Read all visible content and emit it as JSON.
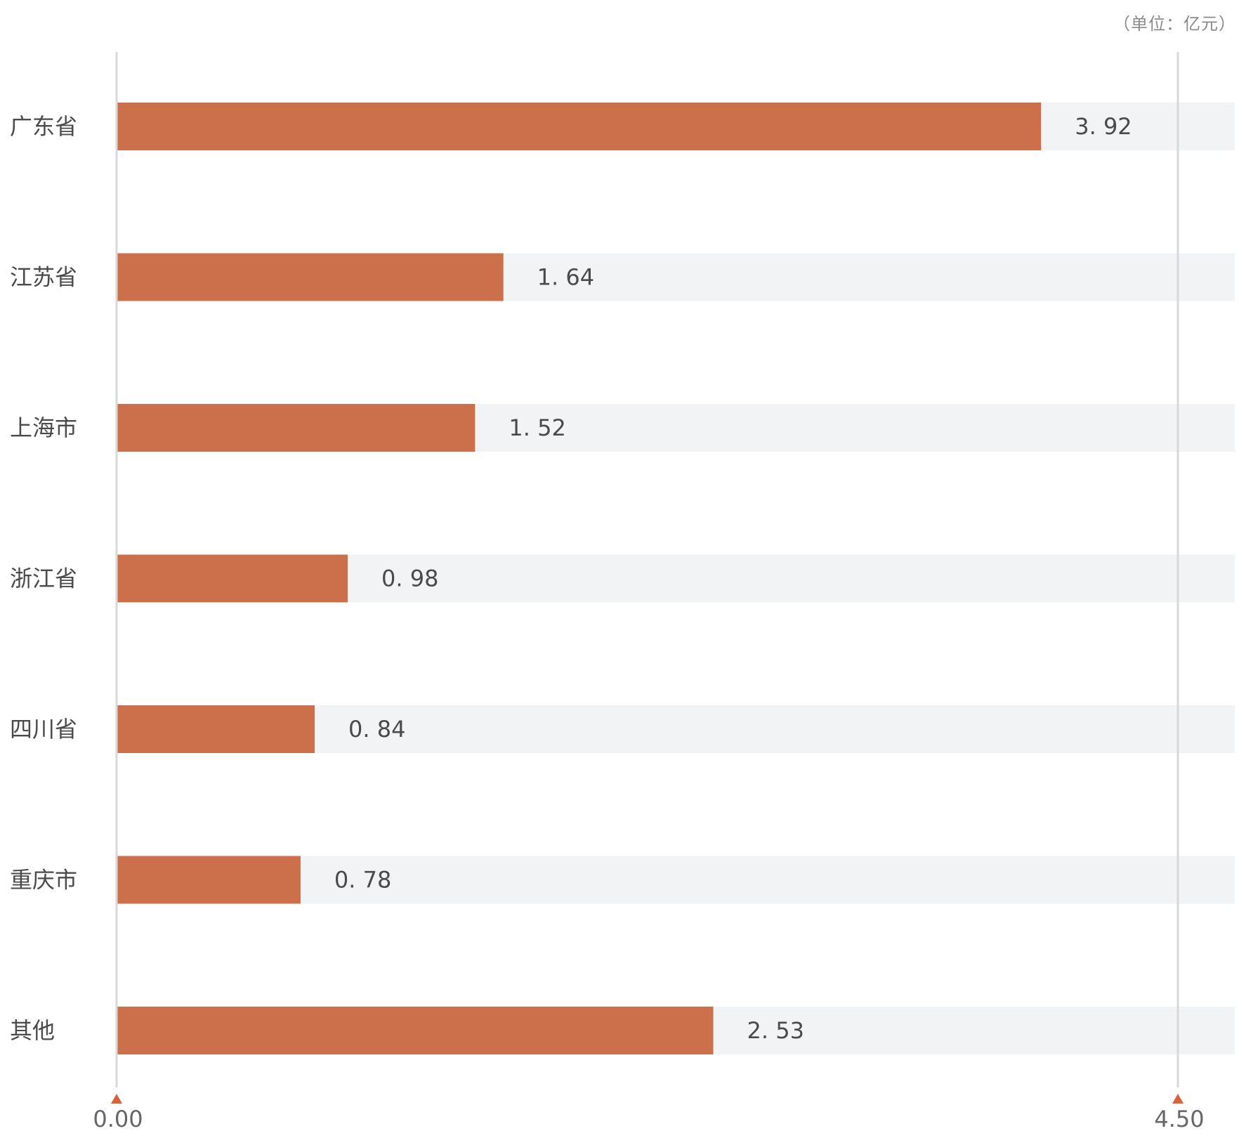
{
  "chart_data": {
    "type": "bar",
    "orientation": "horizontal",
    "unit_label": "（单位：亿元）",
    "categories": [
      "广东省",
      "江苏省",
      "上海市",
      "浙江省",
      "四川省",
      "重庆市",
      "其他"
    ],
    "values": [
      3.92,
      1.64,
      1.52,
      0.98,
      0.84,
      0.78,
      2.53
    ],
    "value_labels": [
      "3. 92",
      "1. 64",
      "1. 52",
      "0. 98",
      "0. 84",
      "0. 78",
      "2. 53"
    ],
    "xlim": [
      0,
      4.5
    ],
    "x_tick_labels": [
      "0.00",
      "4.50"
    ],
    "grid": false,
    "colors": {
      "bar": "#cc704b",
      "track": "#f2f3f5",
      "axis_line": "#d8d8d8",
      "marker": "#d9623b"
    }
  }
}
